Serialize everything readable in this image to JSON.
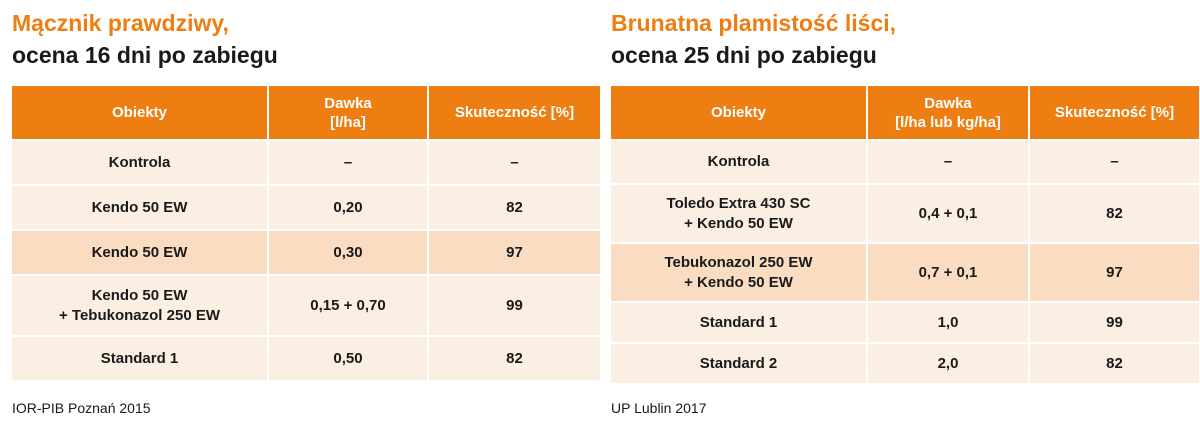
{
  "left": {
    "title_line1": "Mącznik prawdziwy,",
    "title_line2": "ocena 16 dni po zabiegu",
    "headers": {
      "object": "Obiekty",
      "dose_line1": "Dawka",
      "dose_line2": "[l/ha]",
      "efficacy": "Skuteczność [%]"
    },
    "rows": [
      {
        "object_line1": "Kontrola",
        "object_line2": "",
        "dose": "–",
        "efficacy": "–"
      },
      {
        "object_line1": "Kendo 50 EW",
        "object_line2": "",
        "dose": "0,20",
        "efficacy": "82"
      },
      {
        "object_line1": "Kendo 50 EW",
        "object_line2": "",
        "dose": "0,30",
        "efficacy": "97"
      },
      {
        "object_line1": "Kendo 50 EW",
        "object_line2": "+ Tebukonazol 250 EW",
        "dose": "0,15 + 0,70",
        "efficacy": "99"
      },
      {
        "object_line1": "Standard 1",
        "object_line2": "",
        "dose": "0,50",
        "efficacy": "82"
      }
    ],
    "source": "IOR-PIB Poznań 2015"
  },
  "right": {
    "title_line1": "Brunatna plamistość liści,",
    "title_line2": "ocena 25 dni po zabiegu",
    "headers": {
      "object": "Obiekty",
      "dose_line1": "Dawka",
      "dose_line2": "[l/ha lub kg/ha]",
      "efficacy": "Skuteczność [%]"
    },
    "rows": [
      {
        "object_line1": "Kontrola",
        "object_line2": "",
        "dose": "–",
        "efficacy": "–"
      },
      {
        "object_line1": "Toledo Extra 430 SC",
        "object_line2": "+ Kendo 50 EW",
        "dose": "0,4 + 0,1",
        "efficacy": "82"
      },
      {
        "object_line1": "Tebukonazol 250 EW",
        "object_line2": "+ Kendo 50 EW",
        "dose": "0,7 + 0,1",
        "efficacy": "97"
      },
      {
        "object_line1": "Standard 1",
        "object_line2": "",
        "dose": "1,0",
        "efficacy": "99"
      },
      {
        "object_line1": "Standard 2",
        "object_line2": "",
        "dose": "2,0",
        "efficacy": "82"
      }
    ],
    "source": "UP Lublin 2017"
  },
  "colors": {
    "accent": "#ee7d12",
    "row_light": "#fbeee3",
    "row_dark": "#fadcc2",
    "text": "#1a1a1a"
  }
}
